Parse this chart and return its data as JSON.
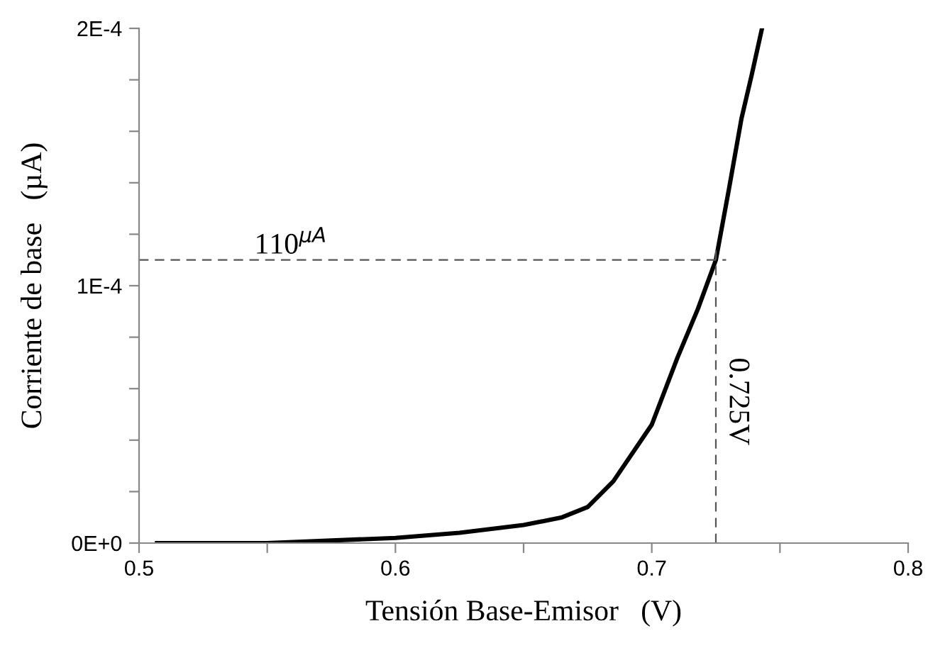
{
  "chart_data": {
    "type": "line",
    "xlabel": "Tensión Base-Emisor   (V)",
    "ylabel": "Corriente de base   (µA)",
    "x": [
      0.507,
      0.55,
      0.6,
      0.625,
      0.65,
      0.665,
      0.675,
      0.685,
      0.7,
      0.71,
      0.718,
      0.725,
      0.73,
      0.735,
      0.739,
      0.743
    ],
    "series": [
      {
        "color": "#000000",
        "values": [
          0,
          0,
          2e-06,
          4e-06,
          7e-06,
          1e-05,
          1.4e-05,
          2.4e-05,
          4.6e-05,
          7.2e-05,
          9.1e-05,
          0.00011,
          0.000137,
          0.000165,
          0.000182,
          0.0002
        ]
      }
    ],
    "xlim": [
      0.5,
      0.8
    ],
    "xticks": [
      0.5,
      {
        "value": 0.55,
        "label": null
      },
      0.6,
      {
        "value": 0.65,
        "label": null
      },
      0.7,
      {
        "value": 0.75,
        "label": null
      },
      0.8
    ],
    "ylim": [
      0,
      0.0002
    ],
    "yticks": [
      {
        "value": 0,
        "label": "0E+0"
      },
      {
        "value": 2e-05,
        "label": null
      },
      {
        "value": 4e-05,
        "label": null
      },
      {
        "value": 6e-05,
        "label": null
      },
      {
        "value": 8e-05,
        "label": null
      },
      {
        "value": 0.0001,
        "label": "1E-4"
      },
      {
        "value": 0.00012,
        "label": null
      },
      {
        "value": 0.00014,
        "label": null
      },
      {
        "value": 0.00016,
        "label": null
      },
      {
        "value": 0.00018,
        "label": null
      },
      {
        "value": 0.0002,
        "label": "2E-4"
      }
    ],
    "ref_lines": [
      {
        "axis": "y",
        "value": 0.00011,
        "label": "110$^{µA}$",
        "line_style": "dashed"
      },
      {
        "axis": "x",
        "value": 0.725,
        "label": "0.725V",
        "line_style": "dashed"
      }
    ],
    "grid": false,
    "legend": false,
    "marker": "none",
    "line_style": "solid"
  }
}
